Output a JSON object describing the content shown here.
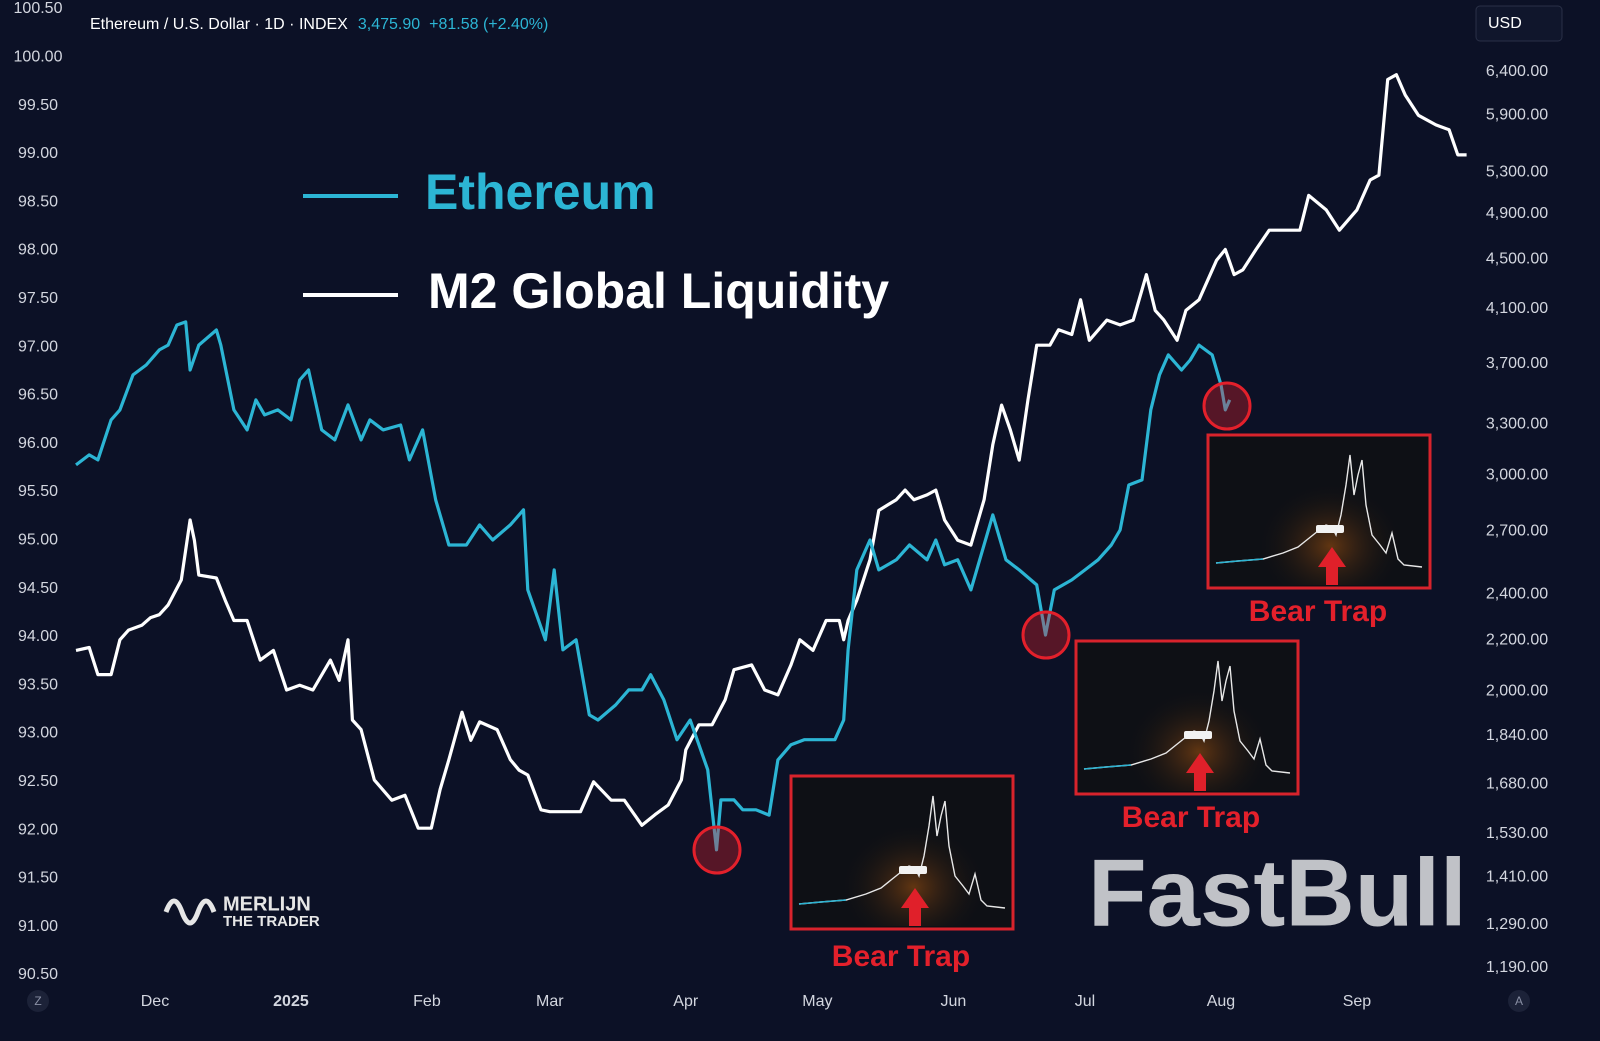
{
  "chart_data": {
    "type": "line",
    "title": "Ethereum / U.S. Dollar · 1D · INDEX",
    "price": "3,475.90",
    "change": "+81.58 (+2.40%)",
    "currency": "USD",
    "xlim": [
      -18,
      300
    ],
    "xticks": [
      {
        "value": 0,
        "label": "Dec"
      },
      {
        "value": 31,
        "label": "2025"
      },
      {
        "value": 62,
        "label": "Feb"
      },
      {
        "value": 90,
        "label": "Mar"
      },
      {
        "value": 121,
        "label": "Apr"
      },
      {
        "value": 151,
        "label": "May"
      },
      {
        "value": 182,
        "label": "Jun"
      },
      {
        "value": 212,
        "label": "Jul"
      },
      {
        "value": 243,
        "label": "Aug"
      },
      {
        "value": 274,
        "label": "Sep"
      }
    ],
    "ylim": [
      90.5,
      100.5
    ],
    "yticks": [
      {
        "value": 90.5,
        "label": "90.50"
      },
      {
        "value": 91,
        "label": "91.00"
      },
      {
        "value": 91.5,
        "label": "91.50"
      },
      {
        "value": 92,
        "label": "92.00"
      },
      {
        "value": 92.5,
        "label": "92.50"
      },
      {
        "value": 93,
        "label": "93.00"
      },
      {
        "value": 93.5,
        "label": "93.50"
      },
      {
        "value": 94,
        "label": "94.00"
      },
      {
        "value": 94.5,
        "label": "94.50"
      },
      {
        "value": 95,
        "label": "95.00"
      },
      {
        "value": 95.5,
        "label": "95.50"
      },
      {
        "value": 96,
        "label": "96.00"
      },
      {
        "value": 96.5,
        "label": "96.50"
      },
      {
        "value": 97,
        "label": "97.00"
      },
      {
        "value": 97.5,
        "label": "97.50"
      },
      {
        "value": 98,
        "label": "98.00"
      },
      {
        "value": 98.5,
        "label": "98.50"
      },
      {
        "value": 99,
        "label": "99.00"
      },
      {
        "value": 99.5,
        "label": "99.50"
      },
      {
        "value": 100,
        "label": "100.00"
      },
      {
        "value": 100.5,
        "label": "100.50"
      }
    ],
    "y2lim": [
      1174,
      7200
    ],
    "y2log": true,
    "y2ticks": [
      {
        "value": 1190,
        "label": "1,190.00"
      },
      {
        "value": 1290,
        "label": "1,290.00"
      },
      {
        "value": 1410,
        "label": "1,410.00"
      },
      {
        "value": 1530,
        "label": "1,530.00"
      },
      {
        "value": 1680,
        "label": "1,680.00"
      },
      {
        "value": 1840,
        "label": "1,840.00"
      },
      {
        "value": 2000,
        "label": "2,000.00"
      },
      {
        "value": 2200,
        "label": "2,200.00"
      },
      {
        "value": 2400,
        "label": "2,400.00"
      },
      {
        "value": 2700,
        "label": "2,700.00"
      },
      {
        "value": 3000,
        "label": "3,000.00"
      },
      {
        "value": 3300,
        "label": "3,300.00"
      },
      {
        "value": 3700,
        "label": "3,700.00"
      },
      {
        "value": 4100,
        "label": "4,100.00"
      },
      {
        "value": 4500,
        "label": "4,500.00"
      },
      {
        "value": 4900,
        "label": "4,900.00"
      },
      {
        "value": 5300,
        "label": "5,300.00"
      },
      {
        "value": 5900,
        "label": "5,900.00"
      },
      {
        "value": 6400,
        "label": "6,400.00"
      }
    ],
    "series": [
      {
        "name": "Ethereum",
        "color": "#2cb5d4",
        "axis": "y2",
        "x": [
          -18,
          -15,
          -13,
          -10,
          -8,
          -5,
          -2,
          1,
          3,
          5,
          7,
          8,
          10,
          14,
          15,
          18,
          21,
          23,
          25,
          28,
          31,
          33,
          35,
          38,
          41,
          44,
          47,
          49,
          52,
          56,
          58,
          61,
          64,
          67,
          71,
          74,
          77,
          81,
          84,
          85,
          89,
          91,
          93,
          96,
          99,
          101,
          105,
          108,
          111,
          113,
          116,
          119,
          122,
          124,
          126,
          128,
          129,
          132,
          134,
          137,
          140,
          142,
          145,
          148,
          152,
          155,
          157,
          158,
          160,
          163,
          165,
          169,
          172,
          176,
          178,
          180,
          183,
          186,
          188,
          191,
          194,
          197,
          201,
          203,
          205,
          209,
          212,
          215,
          218,
          220,
          222,
          225,
          227,
          229,
          231,
          234,
          236,
          238,
          241,
          243,
          244,
          245
        ],
        "values": [
          3059,
          3117,
          3088,
          3329,
          3392,
          3622,
          3690,
          3796,
          3831,
          3978,
          4001,
          3656,
          3831,
          3941,
          3831,
          3392,
          3267,
          3456,
          3360,
          3392,
          3329,
          3588,
          3656,
          3267,
          3206,
          3424,
          3206,
          3329,
          3267,
          3297,
          3088,
          3267,
          2864,
          2632,
          2632,
          2733,
          2657,
          2733,
          2812,
          2419,
          2203,
          2512,
          2162,
          2203,
          1913,
          1895,
          1949,
          2005,
          2005,
          2063,
          1968,
          1826,
          1895,
          1809,
          1726,
          1485,
          1631,
          1631,
          1601,
          1601,
          1585,
          1758,
          1809,
          1826,
          1826,
          1826,
          1895,
          2162,
          2512,
          2657,
          2512,
          2560,
          2632,
          2560,
          2657,
          2536,
          2560,
          2419,
          2560,
          2785,
          2560,
          2512,
          2442,
          2223,
          2419,
          2465,
          2512,
          2560,
          2632,
          2707,
          2946,
          2974,
          3392,
          3622,
          3761,
          3656,
          3725,
          3831,
          3761,
          3555,
          3392,
          3456
        ]
      },
      {
        "name": "M2 Global Liquidity",
        "color": "#ffffff",
        "axis": "y",
        "x": [
          -18,
          -15,
          -13,
          -10,
          -8,
          -6,
          -3,
          -1,
          1,
          3,
          6,
          8,
          9,
          10,
          14,
          16,
          18,
          21,
          24,
          27,
          30,
          33,
          36,
          40,
          42,
          44,
          45,
          47,
          50,
          54,
          57,
          60,
          63,
          65,
          67,
          70,
          72,
          74,
          78,
          81,
          83,
          85,
          88,
          90,
          93,
          97,
          100,
          104,
          107,
          111,
          114,
          117,
          120,
          121,
          124,
          127,
          130,
          132,
          136,
          139,
          142,
          145,
          147,
          150,
          153,
          156,
          157,
          158,
          160,
          163,
          165,
          169,
          171,
          173,
          176,
          178,
          180,
          183,
          186,
          189,
          191,
          193,
          195,
          197,
          199,
          201,
          204,
          206,
          209,
          211,
          213,
          217,
          220,
          223,
          226,
          228,
          230,
          233,
          235,
          238,
          242,
          244,
          246,
          248,
          251,
          254,
          258,
          261,
          263,
          267,
          270,
          274,
          277,
          279,
          281,
          283,
          285,
          288,
          292,
          295,
          297,
          299
        ],
        "values": [
          93.86,
          93.89,
          93.61,
          93.61,
          93.97,
          94.07,
          94.12,
          94.2,
          94.23,
          94.33,
          94.59,
          95.21,
          95.0,
          94.64,
          94.61,
          94.38,
          94.17,
          94.17,
          93.76,
          93.86,
          93.45,
          93.5,
          93.45,
          93.76,
          93.55,
          93.97,
          93.14,
          93.04,
          92.52,
          92.31,
          92.36,
          92.02,
          92.02,
          92.42,
          92.73,
          93.22,
          92.93,
          93.12,
          93.04,
          92.73,
          92.62,
          92.57,
          92.21,
          92.19,
          92.19,
          92.19,
          92.5,
          92.31,
          92.31,
          92.05,
          92.16,
          92.26,
          92.52,
          92.83,
          93.09,
          93.09,
          93.35,
          93.66,
          93.71,
          93.45,
          93.4,
          93.71,
          93.97,
          93.86,
          94.17,
          94.17,
          93.97,
          94.17,
          94.38,
          94.8,
          95.31,
          95.42,
          95.52,
          95.42,
          95.47,
          95.52,
          95.21,
          95.0,
          94.95,
          95.42,
          95.99,
          96.4,
          96.14,
          95.83,
          96.45,
          97.02,
          97.02,
          97.18,
          97.13,
          97.49,
          97.07,
          97.28,
          97.23,
          97.28,
          97.75,
          97.38,
          97.28,
          97.07,
          97.38,
          97.49,
          97.9,
          98.01,
          97.75,
          97.8,
          98.01,
          98.21,
          98.21,
          98.21,
          98.57,
          98.42,
          98.21,
          98.42,
          98.73,
          98.78,
          99.77,
          99.82,
          99.61,
          99.4,
          99.3,
          99.25,
          98.99,
          98.99
        ]
      }
    ],
    "annotations": [
      "Bear Trap",
      "Bear Trap",
      "Bear Trap"
    ],
    "watermarks": [
      "FastBull",
      "MERLIJN",
      "THE TRADER"
    ],
    "buttons": [
      "Z",
      "A"
    ]
  }
}
